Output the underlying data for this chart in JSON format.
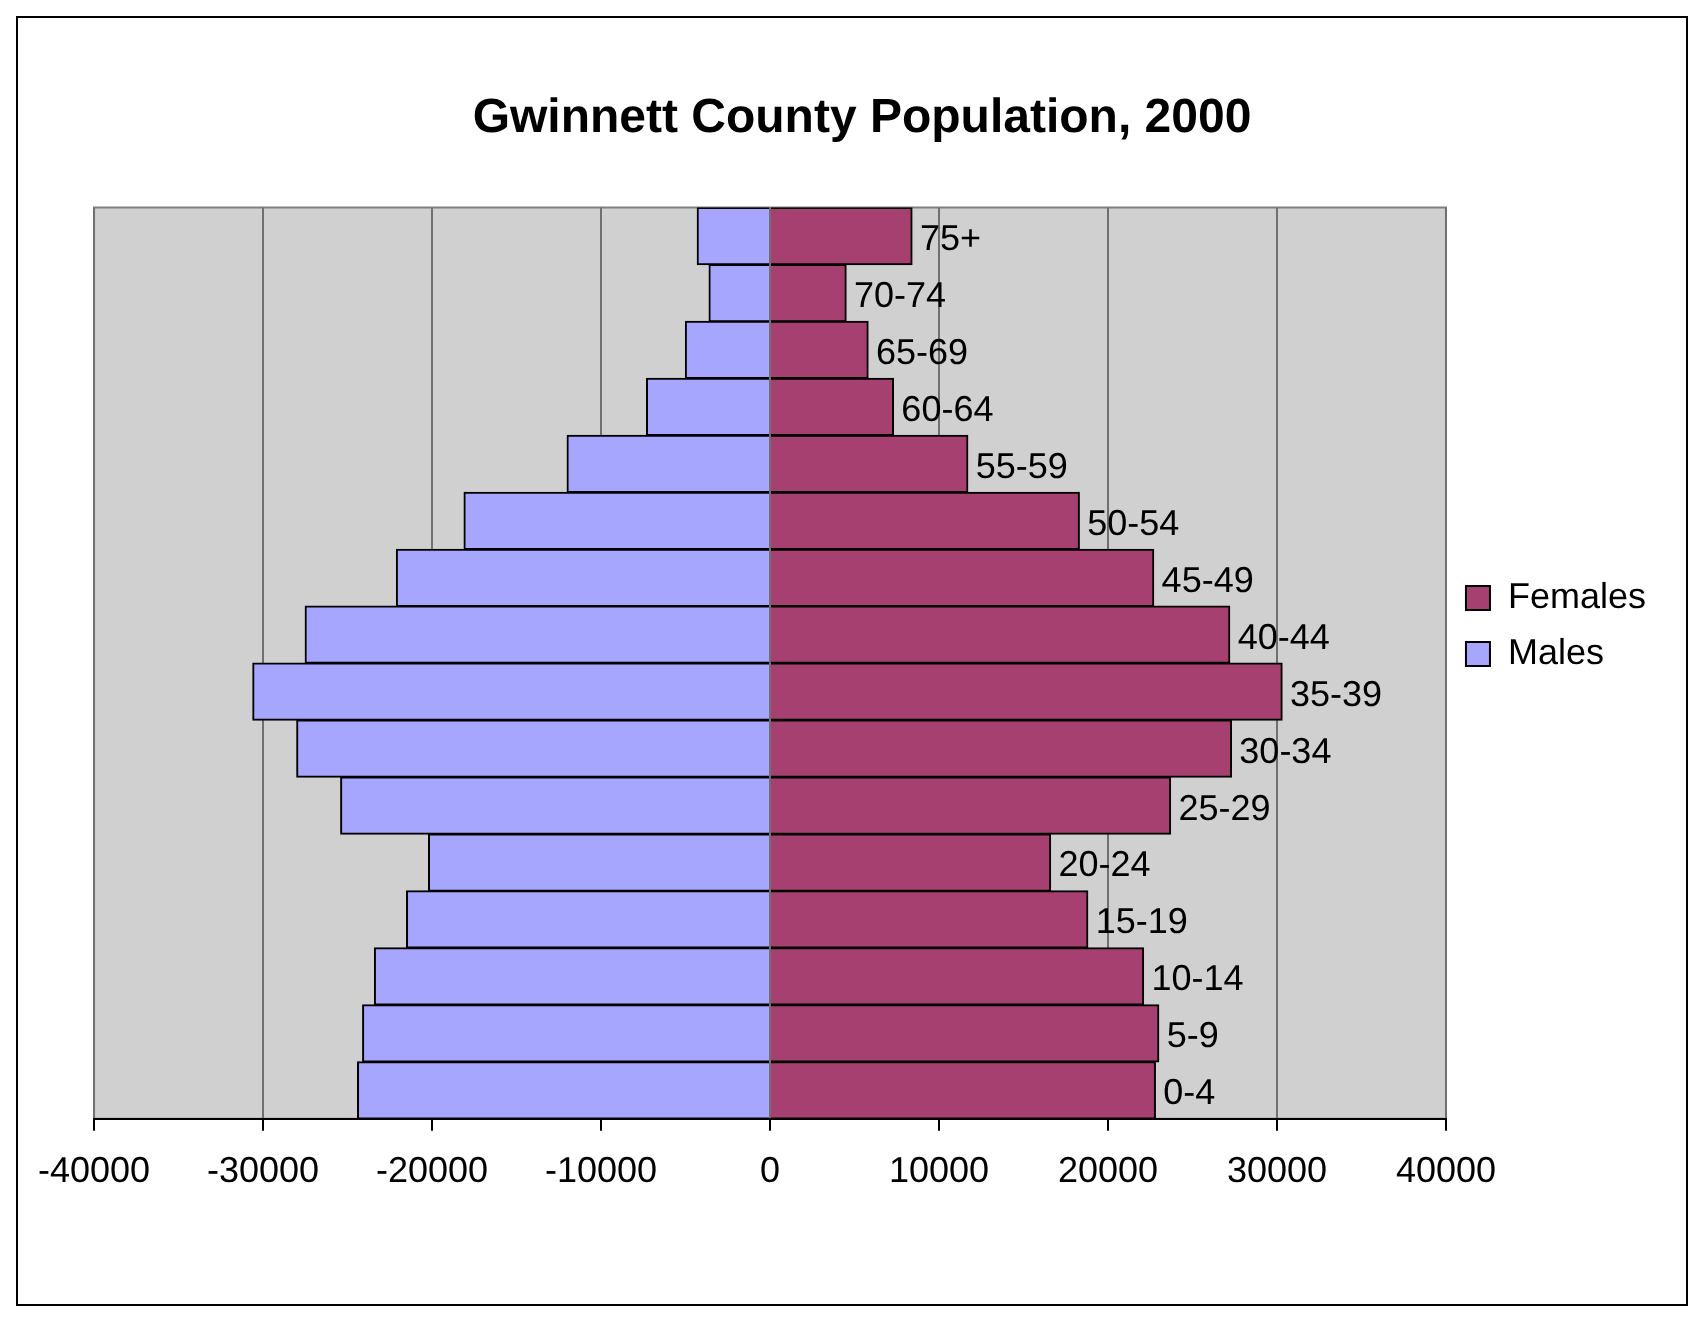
{
  "chart_data": {
    "type": "bar",
    "orientation": "horizontal",
    "stacked": true,
    "title": "Gwinnett County Population, 2000",
    "categories": [
      "75+",
      "70-74",
      "65-69",
      "60-64",
      "55-59",
      "50-54",
      "45-49",
      "40-44",
      "35-39",
      "30-34",
      "25-29",
      "20-24",
      "15-19",
      "10-14",
      "5-9",
      "0-4"
    ],
    "series": [
      {
        "name": "Females",
        "color": "#a64070",
        "values": [
          8400,
          4500,
          5800,
          7300,
          11700,
          18300,
          22700,
          27200,
          30300,
          27300,
          23700,
          16600,
          18800,
          22100,
          23000,
          22800
        ]
      },
      {
        "name": "Males",
        "color": "#a6a6ff",
        "values": [
          -4300,
          -3600,
          -5000,
          -7300,
          -12000,
          -18100,
          -22100,
          -27500,
          -30600,
          -28000,
          -25400,
          -20200,
          -21500,
          -23400,
          -24100,
          -24400
        ]
      }
    ],
    "xlim": [
      -40000,
      40000
    ],
    "xticks": [
      -40000,
      -30000,
      -20000,
      -10000,
      0,
      10000,
      20000,
      30000,
      40000
    ],
    "grid": "x",
    "legend": "right"
  }
}
